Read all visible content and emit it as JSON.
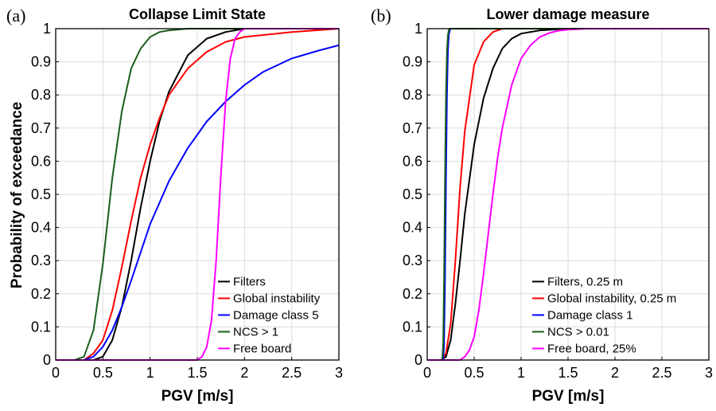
{
  "figure": {
    "ylabel": "Probability of exceedance"
  },
  "chart_data": [
    {
      "type": "line",
      "panel_label": "(a)",
      "title": "Collapse Limit State",
      "xlabel": "PGV [m/s]",
      "ylabel": "Probability of exceedance",
      "xlim": [
        0,
        3
      ],
      "ylim": [
        0,
        1
      ],
      "xticks": [
        "0",
        "0.5",
        "1",
        "1.5",
        "2",
        "2.5",
        "3"
      ],
      "yticks": [
        "0",
        "0.1",
        "0.2",
        "0.3",
        "0.4",
        "0.5",
        "0.6",
        "0.7",
        "0.8",
        "0.9",
        "1"
      ],
      "grid": true,
      "legend_position": "bottom-right",
      "series": [
        {
          "name": "Filters",
          "color": "#000000",
          "x": [
            0,
            0.4,
            0.5,
            0.6,
            0.7,
            0.8,
            0.9,
            1.0,
            1.1,
            1.2,
            1.4,
            1.6,
            1.8,
            2.0,
            3.0
          ],
          "y": [
            0,
            0,
            0.01,
            0.06,
            0.16,
            0.3,
            0.46,
            0.6,
            0.72,
            0.81,
            0.92,
            0.97,
            0.99,
            1.0,
            1.0
          ]
        },
        {
          "name": "Global instability",
          "color": "#ff0000",
          "x": [
            0,
            0.3,
            0.4,
            0.5,
            0.6,
            0.7,
            0.8,
            0.9,
            1.0,
            1.1,
            1.2,
            1.4,
            1.6,
            1.8,
            2.0,
            2.5,
            3.0
          ],
          "y": [
            0,
            0,
            0.02,
            0.06,
            0.15,
            0.28,
            0.42,
            0.55,
            0.65,
            0.73,
            0.8,
            0.88,
            0.93,
            0.96,
            0.975,
            0.99,
            1.0
          ]
        },
        {
          "name": "Damage class 5",
          "color": "#0000ff",
          "x": [
            0,
            0.3,
            0.4,
            0.5,
            0.6,
            0.7,
            0.8,
            1.0,
            1.2,
            1.4,
            1.6,
            1.8,
            2.0,
            2.2,
            2.5,
            2.8,
            3.0
          ],
          "y": [
            0,
            0,
            0.01,
            0.04,
            0.09,
            0.16,
            0.24,
            0.41,
            0.54,
            0.64,
            0.72,
            0.78,
            0.83,
            0.87,
            0.91,
            0.935,
            0.95
          ]
        },
        {
          "name": "NCS > 1",
          "color": "#1a5e1a",
          "x": [
            0,
            0.2,
            0.3,
            0.4,
            0.5,
            0.6,
            0.7,
            0.8,
            0.9,
            1.0,
            1.1,
            1.2,
            1.4,
            1.6,
            3.0
          ],
          "y": [
            0,
            0,
            0.01,
            0.09,
            0.29,
            0.55,
            0.75,
            0.88,
            0.94,
            0.975,
            0.99,
            0.995,
            1.0,
            1.0,
            1.0
          ]
        },
        {
          "name": "Free board",
          "color": "#ff00ff",
          "x": [
            0,
            1.5,
            1.55,
            1.6,
            1.65,
            1.7,
            1.75,
            1.8,
            1.85,
            1.9,
            1.95,
            2.0,
            2.1,
            3.0
          ],
          "y": [
            0,
            0,
            0.01,
            0.04,
            0.12,
            0.3,
            0.56,
            0.78,
            0.91,
            0.97,
            0.99,
            1.0,
            1.0,
            1.0
          ]
        }
      ]
    },
    {
      "type": "line",
      "panel_label": "(b)",
      "title": "Lower damage measure",
      "xlabel": "PGV [m/s]",
      "ylabel": "",
      "xlim": [
        0,
        3
      ],
      "ylim": [
        0,
        1
      ],
      "xticks": [
        "0",
        "0.5",
        "1",
        "1.5",
        "2",
        "2.5",
        "3"
      ],
      "yticks": [
        "0",
        "0.1",
        "0.2",
        "0.3",
        "0.4",
        "0.5",
        "0.6",
        "0.7",
        "0.8",
        "0.9",
        "1"
      ],
      "grid": true,
      "legend_position": "bottom-right",
      "series": [
        {
          "name": "Filters, 0.25 m",
          "color": "#000000",
          "x": [
            0,
            0.15,
            0.2,
            0.25,
            0.3,
            0.35,
            0.4,
            0.5,
            0.6,
            0.7,
            0.8,
            0.9,
            1.0,
            1.2,
            1.5,
            3.0
          ],
          "y": [
            0,
            0,
            0.01,
            0.06,
            0.17,
            0.3,
            0.44,
            0.65,
            0.79,
            0.88,
            0.94,
            0.97,
            0.985,
            0.995,
            1.0,
            1.0
          ]
        },
        {
          "name": "Global instability, 0.25 m",
          "color": "#ff0000",
          "x": [
            0,
            0.15,
            0.2,
            0.25,
            0.3,
            0.35,
            0.4,
            0.5,
            0.6,
            0.7,
            0.8,
            1.0,
            3.0
          ],
          "y": [
            0,
            0,
            0.02,
            0.11,
            0.3,
            0.52,
            0.69,
            0.89,
            0.96,
            0.99,
            1.0,
            1.0,
            1.0
          ]
        },
        {
          "name": "Damage class 1",
          "color": "#0000ff",
          "x": [
            0,
            0.17,
            0.18,
            0.19,
            0.2,
            0.21,
            0.22,
            0.23,
            0.24,
            0.25,
            3.0
          ],
          "y": [
            0,
            0,
            0.05,
            0.25,
            0.55,
            0.8,
            0.93,
            0.98,
            0.995,
            1.0,
            1.0
          ]
        },
        {
          "name": "NCS > 0.01",
          "color": "#1a5e1a",
          "x": [
            0,
            0.16,
            0.17,
            0.18,
            0.19,
            0.2,
            0.21,
            0.22,
            0.23,
            0.24,
            3.0
          ],
          "y": [
            0,
            0,
            0.05,
            0.25,
            0.55,
            0.8,
            0.93,
            0.98,
            0.995,
            1.0,
            1.0
          ]
        },
        {
          "name": "Free board, 25%",
          "color": "#ff00ff",
          "x": [
            0,
            0.35,
            0.4,
            0.45,
            0.5,
            0.55,
            0.6,
            0.65,
            0.7,
            0.75,
            0.8,
            0.9,
            1.0,
            1.1,
            1.2,
            1.3,
            1.4,
            1.5,
            1.7,
            2.0,
            3.0
          ],
          "y": [
            0,
            0,
            0.01,
            0.03,
            0.07,
            0.15,
            0.26,
            0.38,
            0.5,
            0.61,
            0.7,
            0.83,
            0.91,
            0.95,
            0.975,
            0.987,
            0.994,
            0.997,
            1.0,
            1.0,
            1.0
          ]
        }
      ]
    }
  ]
}
